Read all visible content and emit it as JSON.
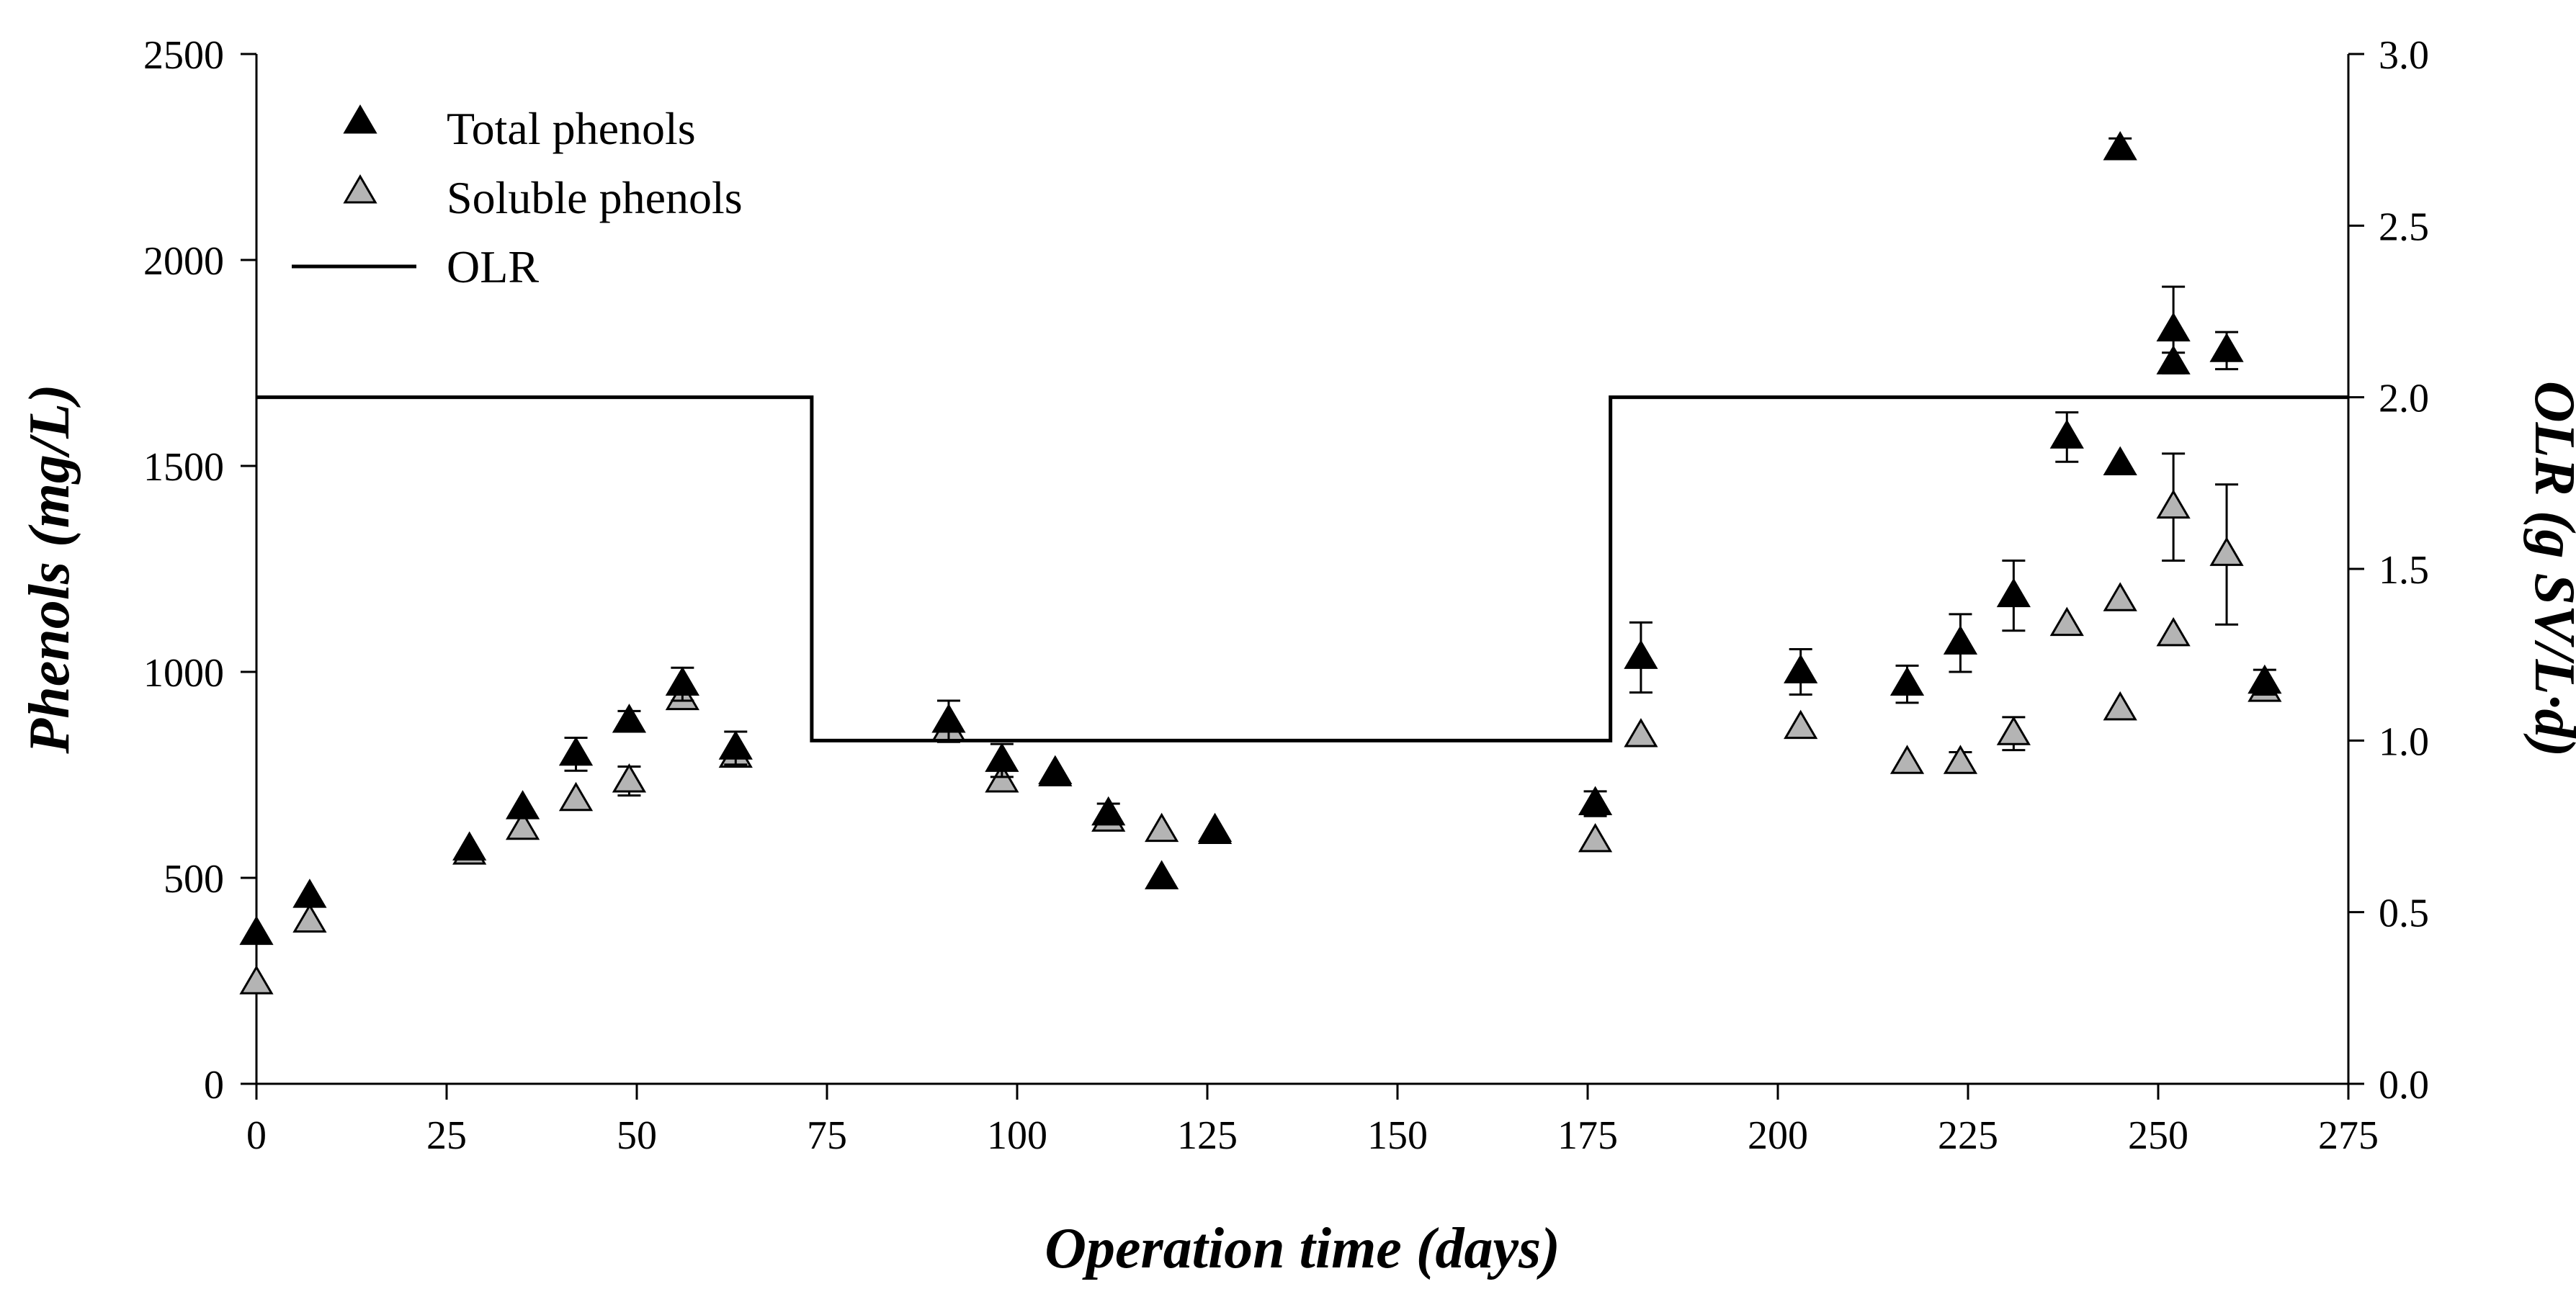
{
  "chart_data": {
    "type": "scatter",
    "xlabel": "Operation time (days)",
    "ylabel": "Phenols (mg/L)",
    "y2label": "OLR (g SV/L·d)",
    "xlim": [
      0,
      275
    ],
    "ylim": [
      0,
      2500
    ],
    "y2lim": [
      0.0,
      3.0
    ],
    "x_ticks": [
      "0",
      "25",
      "50",
      "75",
      "100",
      "125",
      "150",
      "175",
      "200",
      "225",
      "250",
      "275"
    ],
    "y_ticks": [
      "0",
      "500",
      "1000",
      "1500",
      "2000",
      "2500"
    ],
    "y2_ticks": [
      "0.0",
      "0.5",
      "1.0",
      "1.5",
      "2.0",
      "2.5",
      "3.0"
    ],
    "legend_position": "top-left",
    "colors": {
      "total": "#000000",
      "soluble": "#b4b4b4",
      "olr": "#000000"
    },
    "series": [
      {
        "name": "Total phenols",
        "marker": "triangle-filled-black",
        "points": [
          {
            "x": 0,
            "y": 365,
            "err": 0
          },
          {
            "x": 7,
            "y": 455,
            "err": 0
          },
          {
            "x": 28,
            "y": 570,
            "err": 0
          },
          {
            "x": 35,
            "y": 670,
            "err": 0
          },
          {
            "x": 42,
            "y": 800,
            "err": 40
          },
          {
            "x": 49,
            "y": 880,
            "err": 25
          },
          {
            "x": 56,
            "y": 970,
            "err": 40
          },
          {
            "x": 63,
            "y": 815,
            "err": 40
          },
          {
            "x": 91,
            "y": 880,
            "err": 50
          },
          {
            "x": 98,
            "y": 785,
            "err": 40
          },
          {
            "x": 105,
            "y": 755,
            "err": 0
          },
          {
            "x": 112,
            "y": 655,
            "err": 25
          },
          {
            "x": 119,
            "y": 500,
            "err": 0
          },
          {
            "x": 126,
            "y": 615,
            "err": 0
          },
          {
            "x": 176,
            "y": 680,
            "err": 30
          },
          {
            "x": 182,
            "y": 1035,
            "err": 85
          },
          {
            "x": 203,
            "y": 1000,
            "err": 55
          },
          {
            "x": 217,
            "y": 970,
            "err": 45
          },
          {
            "x": 224,
            "y": 1070,
            "err": 70
          },
          {
            "x": 231,
            "y": 1185,
            "err": 85
          },
          {
            "x": 238,
            "y": 1570,
            "err": 60
          },
          {
            "x": 245,
            "y": 1505,
            "err": 0
          },
          {
            "x": 245,
            "y": 2270,
            "err": 25
          },
          {
            "x": 252,
            "y": 1830,
            "err": 105
          },
          {
            "x": 252,
            "y": 1750,
            "err": 25
          },
          {
            "x": 259,
            "y": 1780,
            "err": 45
          },
          {
            "x": 264,
            "y": 975,
            "err": 30
          }
        ]
      },
      {
        "name": "Soluble phenols",
        "marker": "triangle-filled-gray",
        "points": [
          {
            "x": 0,
            "y": 245,
            "err": 0
          },
          {
            "x": 7,
            "y": 395,
            "err": 0
          },
          {
            "x": 28,
            "y": 560,
            "err": 0
          },
          {
            "x": 35,
            "y": 620,
            "err": 0
          },
          {
            "x": 42,
            "y": 690,
            "err": 0
          },
          {
            "x": 49,
            "y": 735,
            "err": 35
          },
          {
            "x": 56,
            "y": 935,
            "err": 0
          },
          {
            "x": 63,
            "y": 795,
            "err": 0
          },
          {
            "x": 91,
            "y": 860,
            "err": 0
          },
          {
            "x": 98,
            "y": 735,
            "err": 0
          },
          {
            "x": 105,
            "y": 750,
            "err": 0
          },
          {
            "x": 112,
            "y": 640,
            "err": 0
          },
          {
            "x": 119,
            "y": 615,
            "err": 0
          },
          {
            "x": 126,
            "y": 610,
            "err": 0
          },
          {
            "x": 176,
            "y": 590,
            "err": 0
          },
          {
            "x": 182,
            "y": 845,
            "err": 0
          },
          {
            "x": 203,
            "y": 865,
            "err": 0
          },
          {
            "x": 217,
            "y": 780,
            "err": 0
          },
          {
            "x": 224,
            "y": 780,
            "err": 25
          },
          {
            "x": 231,
            "y": 850,
            "err": 40
          },
          {
            "x": 238,
            "y": 1115,
            "err": 0
          },
          {
            "x": 245,
            "y": 1175,
            "err": 0
          },
          {
            "x": 245,
            "y": 910,
            "err": 0
          },
          {
            "x": 252,
            "y": 1400,
            "err": 130
          },
          {
            "x": 252,
            "y": 1090,
            "err": 0
          },
          {
            "x": 259,
            "y": 1285,
            "err": 170
          },
          {
            "x": 264,
            "y": 955,
            "err": 0
          }
        ]
      },
      {
        "name": "OLR",
        "type": "step-line",
        "axis": "right",
        "points": [
          {
            "x": 0,
            "y": 2.0
          },
          {
            "x": 73,
            "y": 2.0
          },
          {
            "x": 73,
            "y": 1.0
          },
          {
            "x": 178,
            "y": 1.0
          },
          {
            "x": 178,
            "y": 2.0
          },
          {
            "x": 275,
            "y": 2.0
          }
        ]
      }
    ]
  }
}
